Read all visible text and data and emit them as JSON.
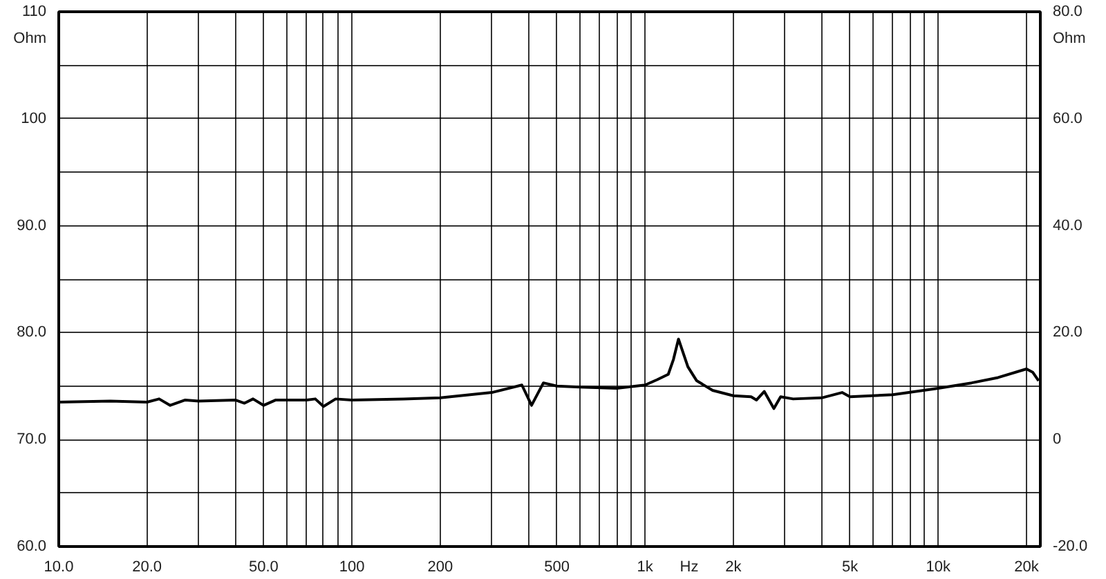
{
  "chart_data": {
    "type": "line",
    "xlabel": "Hz",
    "ylabel": "Ohm",
    "y2label": "Ohm",
    "log": "x",
    "grid": true,
    "marker": "none",
    "line_style": "solid",
    "xlim": [
      10,
      22300
    ],
    "ylim": [
      60,
      110
    ],
    "y2lim": [
      -20,
      80
    ],
    "xticks": [
      {
        "value": 10,
        "label": "10.0"
      },
      {
        "value": 20,
        "label": "20.0"
      },
      {
        "value": 30,
        "label": null
      },
      {
        "value": 40,
        "label": null
      },
      {
        "value": 50,
        "label": "50.0"
      },
      {
        "value": 60,
        "label": null
      },
      {
        "value": 70,
        "label": null
      },
      {
        "value": 80,
        "label": null
      },
      {
        "value": 90,
        "label": null
      },
      100,
      200,
      {
        "value": 300,
        "label": null
      },
      {
        "value": 400,
        "label": null
      },
      500,
      {
        "value": 600,
        "label": null
      },
      {
        "value": 700,
        "label": null
      },
      {
        "value": 800,
        "label": null
      },
      {
        "value": 900,
        "label": null
      },
      {
        "value": 1000,
        "label": "1k"
      },
      {
        "value": 2000,
        "label": "2k"
      },
      {
        "value": 3000,
        "label": null
      },
      {
        "value": 4000,
        "label": null
      },
      {
        "value": 5000,
        "label": "5k"
      },
      {
        "value": 6000,
        "label": null
      },
      {
        "value": 7000,
        "label": null
      },
      {
        "value": 8000,
        "label": null
      },
      {
        "value": 9000,
        "label": null
      },
      {
        "value": 10000,
        "label": "10k"
      },
      {
        "value": 20000,
        "label": "20k"
      }
    ],
    "yticks": [
      {
        "value": 60,
        "label": "60.0"
      },
      {
        "value": 65,
        "label": null
      },
      {
        "value": 70,
        "label": "70.0"
      },
      {
        "value": 75,
        "label": null
      },
      {
        "value": 80,
        "label": "80.0"
      },
      {
        "value": 85,
        "label": null
      },
      {
        "value": 90,
        "label": "90.0"
      },
      {
        "value": 95,
        "label": null
      },
      100,
      {
        "value": 105,
        "label": null
      },
      110
    ],
    "y2ticks": [
      {
        "value": -20,
        "label": "-20.0"
      },
      {
        "value": -10,
        "label": null
      },
      0,
      {
        "value": 10,
        "label": null
      },
      {
        "value": 20,
        "label": "20.0"
      },
      {
        "value": 30,
        "label": null
      },
      {
        "value": 40,
        "label": "40.0"
      },
      {
        "value": 50,
        "label": null
      },
      {
        "value": 60,
        "label": "60.0"
      },
      {
        "value": 70,
        "label": null
      },
      {
        "value": 80,
        "label": "80.0"
      }
    ],
    "series": [
      {
        "color": "#000000",
        "x": [
          10,
          15,
          20,
          22,
          24,
          27,
          30,
          40,
          43,
          46,
          50,
          55,
          70,
          75,
          80,
          88,
          100,
          150,
          200,
          300,
          380,
          410,
          450,
          500,
          600,
          800,
          1000,
          1100,
          1200,
          1250,
          1300,
          1400,
          1500,
          1700,
          2000,
          2300,
          2400,
          2550,
          2750,
          2900,
          3200,
          4000,
          4700,
          5000,
          7000,
          10000,
          13000,
          16000,
          20000,
          21000,
          22000
        ],
        "values": [
          73.5,
          73.6,
          73.5,
          73.8,
          73.2,
          73.7,
          73.6,
          73.7,
          73.4,
          73.8,
          73.2,
          73.7,
          73.7,
          73.8,
          73.1,
          73.8,
          73.7,
          73.8,
          73.9,
          74.4,
          75.1,
          73.2,
          75.3,
          75.0,
          74.9,
          74.8,
          75.1,
          75.6,
          76.1,
          77.5,
          79.4,
          76.8,
          75.5,
          74.6,
          74.1,
          74.0,
          73.7,
          74.5,
          72.9,
          74.0,
          73.8,
          73.9,
          74.4,
          74.0,
          74.2,
          74.8,
          75.3,
          75.8,
          76.6,
          76.3,
          75.5
        ]
      }
    ]
  }
}
